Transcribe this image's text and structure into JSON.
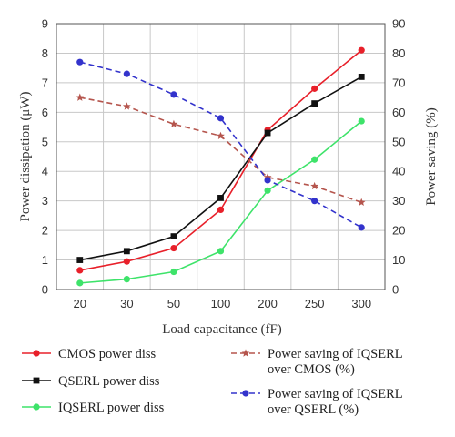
{
  "chart_data": {
    "type": "line",
    "categories": [
      "20",
      "30",
      "50",
      "100",
      "200",
      "250",
      "300"
    ],
    "xlabel": "Load capacitance (fF)",
    "ylabel_left": "Power dissipation (μW)",
    "ylabel_right": "Power saving (%)",
    "ylim_left": [
      0,
      9
    ],
    "ylim_right": [
      0,
      90
    ],
    "yticks_left": [
      "0",
      "1",
      "2",
      "3",
      "4",
      "5",
      "6",
      "7",
      "8",
      "9"
    ],
    "yticks_right": [
      "0",
      "10",
      "20",
      "30",
      "40",
      "50",
      "60",
      "70",
      "80",
      "90"
    ],
    "grid": true,
    "legend_position": "bottom",
    "series": [
      {
        "name": "CMOS power diss",
        "axis": "left",
        "color": "#e8202a",
        "dash": false,
        "marker": "circle",
        "values": [
          0.65,
          0.95,
          1.4,
          2.7,
          5.4,
          6.8,
          8.1
        ]
      },
      {
        "name": "QSERL power diss",
        "axis": "left",
        "color": "#111111",
        "dash": false,
        "marker": "square",
        "values": [
          1.0,
          1.3,
          1.8,
          3.1,
          5.3,
          6.3,
          7.2
        ]
      },
      {
        "name": "IQSERL power diss",
        "axis": "left",
        "color": "#3ee36a",
        "dash": false,
        "marker": "circle",
        "values": [
          0.22,
          0.35,
          0.6,
          1.3,
          3.35,
          4.4,
          5.7
        ]
      },
      {
        "name": "Power saving of IQSERL over CMOS (%)",
        "axis": "right",
        "color": "#b5554d",
        "dash": true,
        "marker": "triangle",
        "values": [
          65,
          62,
          56,
          52,
          38,
          35,
          29.5
        ]
      },
      {
        "name": "Power saving of IQSERL over QSERL (%)",
        "axis": "right",
        "color": "#3333cc",
        "dash": true,
        "marker": "circle",
        "values": [
          77,
          73,
          66,
          58,
          37,
          30,
          21
        ]
      }
    ],
    "legend": [
      {
        "lines": [
          "CMOS power diss"
        ]
      },
      {
        "lines": [
          "QSERL power diss"
        ]
      },
      {
        "lines": [
          "IQSERL power diss"
        ]
      },
      {
        "lines": [
          "Power saving of IQSERL",
          "over CMOS (%)"
        ]
      },
      {
        "lines": [
          "Power saving of IQSERL",
          "over QSERL (%)"
        ]
      }
    ]
  }
}
